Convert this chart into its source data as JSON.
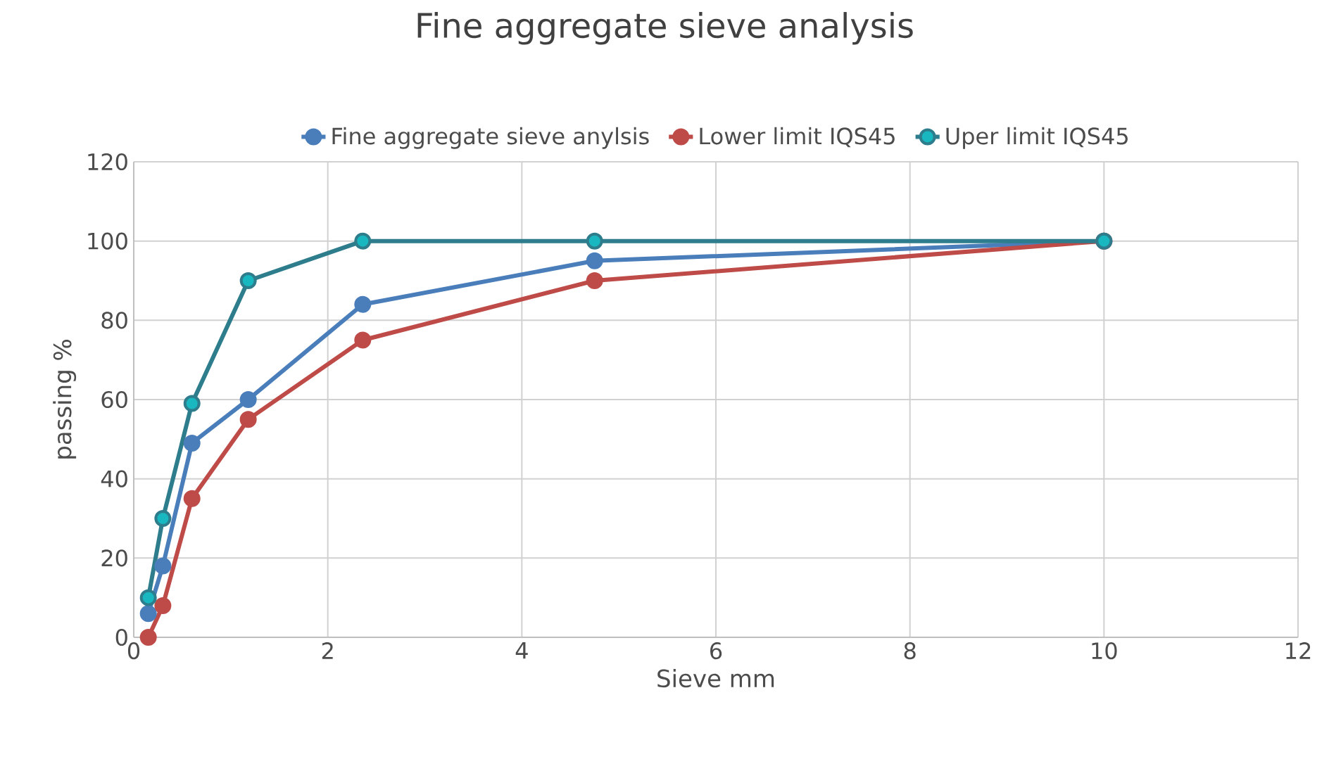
{
  "chart_data": {
    "type": "line",
    "title": "Fine aggregate sieve analysis",
    "xlabel": "Sieve mm",
    "ylabel": "passing %",
    "x": [
      0.15,
      0.3,
      0.6,
      1.18,
      2.36,
      4.75,
      10
    ],
    "series": [
      {
        "name": "Fine aggregate sieve anylsis",
        "color": "#4a7ebb",
        "values": [
          6,
          18,
          49,
          60,
          84,
          95,
          100
        ]
      },
      {
        "name": "Lower limit IQS45",
        "color": "#be4b48",
        "values": [
          0,
          8,
          35,
          55,
          75,
          90,
          100
        ]
      },
      {
        "name": "Uper limit IQS45",
        "color": "#2e7d8c",
        "values": [
          10,
          30,
          59,
          90,
          100,
          100,
          100
        ]
      }
    ],
    "xlim": [
      0,
      12
    ],
    "xticks": [
      0,
      2,
      4,
      6,
      8,
      10,
      12
    ],
    "ylim": [
      0,
      120
    ],
    "yticks": [
      0,
      20,
      40,
      60,
      80,
      100,
      120
    ],
    "grid": true,
    "legend": "top",
    "marker": "circle",
    "line_style": "solid"
  }
}
